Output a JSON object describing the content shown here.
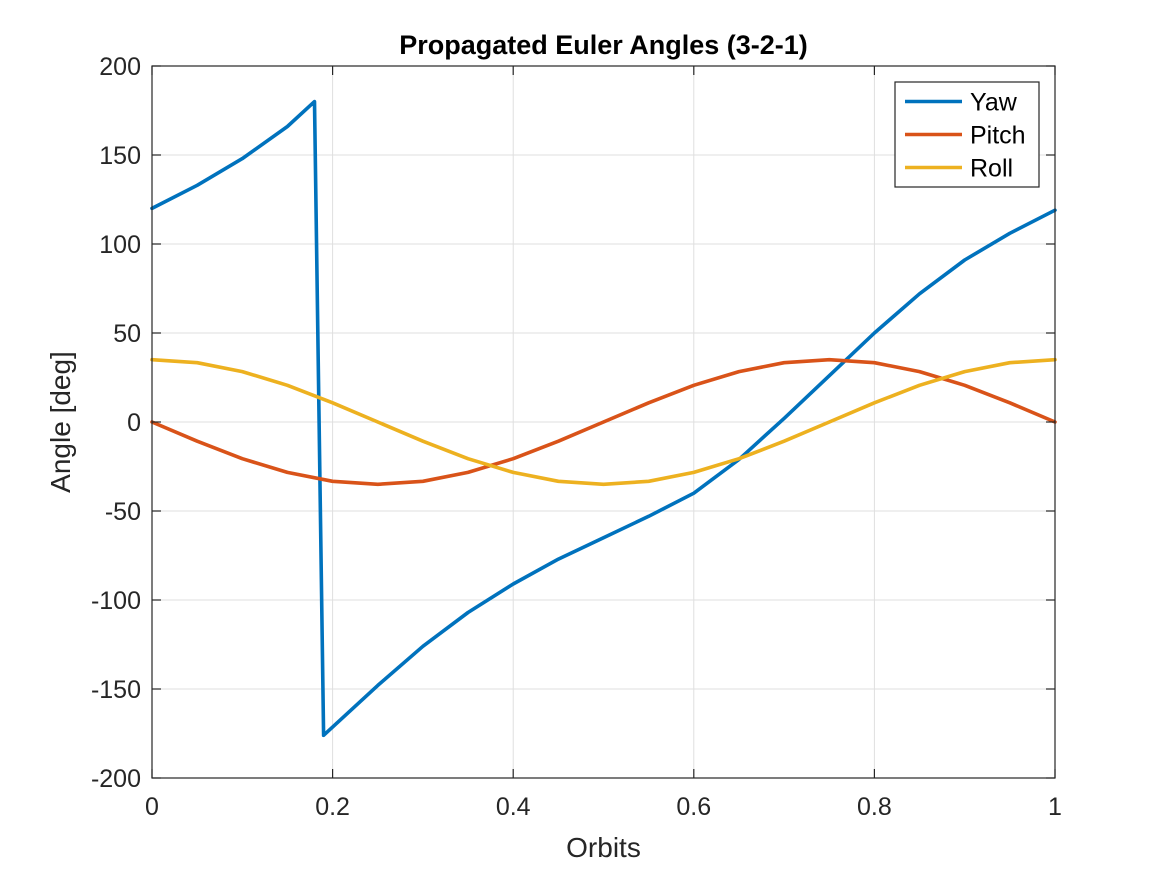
{
  "chart_data": {
    "type": "line",
    "title": "Propagated Euler Angles (3-2-1)",
    "xlabel": "Orbits",
    "ylabel": "Angle [deg]",
    "xlim": [
      0,
      1
    ],
    "ylim": [
      -200,
      200
    ],
    "xticks": [
      0,
      0.2,
      0.4,
      0.6,
      0.8,
      1
    ],
    "xtick_labels": [
      "0",
      "0.2",
      "0.4",
      "0.6",
      "0.8",
      "1"
    ],
    "yticks": [
      200,
      150,
      100,
      50,
      0,
      -50,
      -100,
      -150,
      -200
    ],
    "ytick_labels": [
      "200",
      "150",
      "100",
      "50",
      "0",
      "-50",
      "-100",
      "-150",
      "-200"
    ],
    "grid": true,
    "legend_position": "top-right",
    "series": [
      {
        "name": "Yaw",
        "color": "#0072BD",
        "x": [
          0,
          0.05,
          0.1,
          0.15,
          0.18,
          0.19,
          0.25,
          0.3,
          0.35,
          0.4,
          0.45,
          0.5,
          0.55,
          0.6,
          0.65,
          0.7,
          0.75,
          0.8,
          0.85,
          0.9,
          0.95,
          1.0
        ],
        "y": [
          120,
          133,
          148,
          166,
          180,
          -176,
          -148,
          -126,
          -107,
          -91,
          -77,
          -65,
          -53,
          -40,
          -21,
          2,
          26,
          50,
          72,
          91,
          106,
          119
        ]
      },
      {
        "name": "Pitch",
        "color": "#D95319",
        "x": [
          0,
          0.05,
          0.1,
          0.15,
          0.2,
          0.25,
          0.3,
          0.35,
          0.4,
          0.45,
          0.5,
          0.55,
          0.6,
          0.65,
          0.7,
          0.75,
          0.8,
          0.85,
          0.9,
          0.95,
          1.0
        ],
        "y": [
          0,
          -10.8,
          -20.6,
          -28.3,
          -33.3,
          -35,
          -33.3,
          -28.3,
          -20.6,
          -10.8,
          0,
          10.8,
          20.6,
          28.3,
          33.3,
          35,
          33.3,
          28.3,
          20.6,
          10.8,
          0
        ]
      },
      {
        "name": "Roll",
        "color": "#EDB120",
        "x": [
          0,
          0.05,
          0.1,
          0.15,
          0.2,
          0.25,
          0.3,
          0.35,
          0.4,
          0.45,
          0.5,
          0.55,
          0.6,
          0.65,
          0.7,
          0.75,
          0.8,
          0.85,
          0.9,
          0.95,
          1.0
        ],
        "y": [
          35,
          33.3,
          28.3,
          20.6,
          10.8,
          0,
          -10.8,
          -20.6,
          -28.3,
          -33.3,
          -35,
          -33.3,
          -28.3,
          -20.6,
          -10.8,
          0,
          10.8,
          20.6,
          28.3,
          33.3,
          35
        ]
      }
    ]
  }
}
